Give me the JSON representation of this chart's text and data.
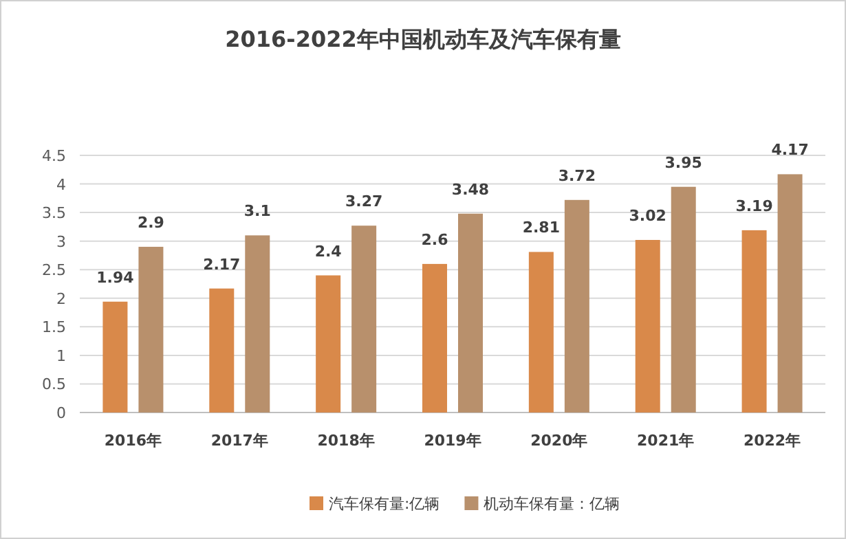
{
  "chart_data": {
    "type": "bar",
    "title": "2016-2022年中国机动车及汽车保有量",
    "categories": [
      "2016年",
      "2017年",
      "2018年",
      "2019年",
      "2020年",
      "2021年",
      "2022年"
    ],
    "series": [
      {
        "name": "汽车保有量:亿辆",
        "color": "#d9894a",
        "values": [
          1.94,
          2.17,
          2.4,
          2.6,
          2.81,
          3.02,
          3.19
        ]
      },
      {
        "name": "机动车保有量：亿辆",
        "color": "#b8906c",
        "values": [
          2.9,
          3.1,
          3.27,
          3.48,
          3.72,
          3.95,
          4.17
        ]
      }
    ],
    "ylim": [
      0,
      4.5
    ],
    "yticks": [
      0,
      0.5,
      1,
      1.5,
      2,
      2.5,
      3,
      3.5,
      4,
      4.5
    ],
    "grid": "y",
    "legend": "bottom",
    "data_labels": true
  }
}
